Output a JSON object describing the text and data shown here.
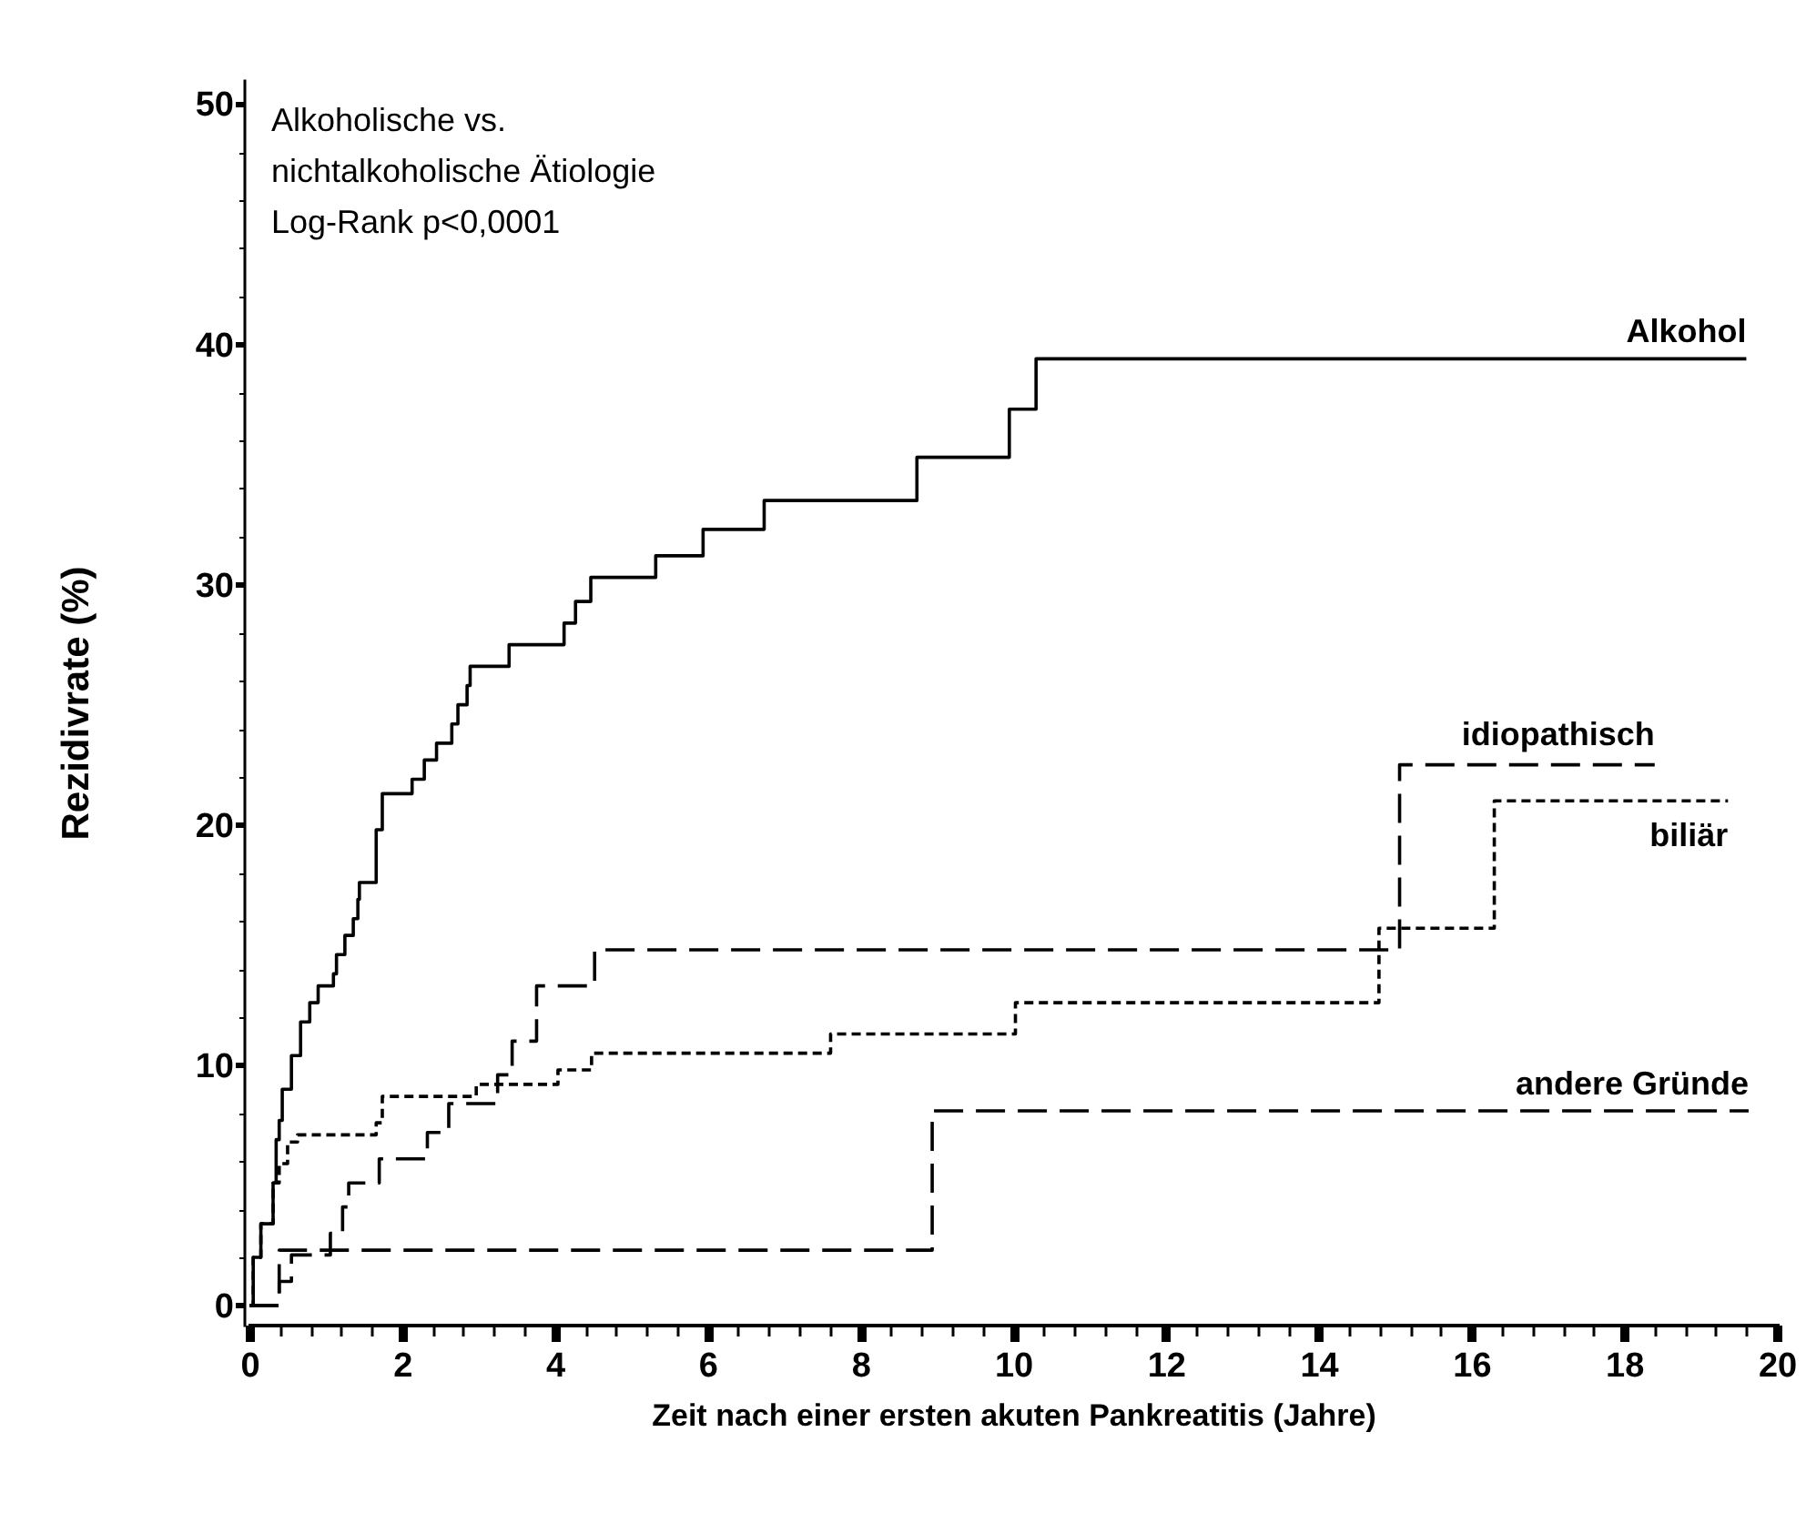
{
  "chart_data": {
    "type": "step",
    "xlabel": "Zeit nach einer ersten akuten Pankreatitis (Jahre)",
    "ylabel": "Rezidivrate (%)",
    "annotations": [
      "Alkoholische vs.",
      "nichtalkoholische Ätiologie",
      "Log-Rank p<0,0001"
    ],
    "xlim": [
      0,
      20
    ],
    "ylim": [
      -0.8,
      51
    ],
    "xticks": [
      0,
      {
        "value": 0.4,
        "label": null
      },
      {
        "value": 0.8,
        "label": null
      },
      {
        "value": 1.2,
        "label": null
      },
      {
        "value": 1.6,
        "label": null
      },
      2,
      {
        "value": 2.4,
        "label": null
      },
      {
        "value": 2.8,
        "label": null
      },
      {
        "value": 3.2,
        "label": null
      },
      {
        "value": 3.6,
        "label": null
      },
      4,
      {
        "value": 4.4,
        "label": null
      },
      {
        "value": 4.8,
        "label": null
      },
      {
        "value": 5.2,
        "label": null
      },
      {
        "value": 5.6,
        "label": null
      },
      6,
      {
        "value": 6.4,
        "label": null
      },
      {
        "value": 6.8,
        "label": null
      },
      {
        "value": 7.2,
        "label": null
      },
      {
        "value": 7.6,
        "label": null
      },
      8,
      {
        "value": 8.4,
        "label": null
      },
      {
        "value": 8.8,
        "label": null
      },
      {
        "value": 9.2,
        "label": null
      },
      {
        "value": 9.6,
        "label": null
      },
      10,
      {
        "value": 10.4,
        "label": null
      },
      {
        "value": 10.8,
        "label": null
      },
      {
        "value": 11.2,
        "label": null
      },
      {
        "value": 11.6,
        "label": null
      },
      12,
      {
        "value": 12.4,
        "label": null
      },
      {
        "value": 12.8,
        "label": null
      },
      {
        "value": 13.2,
        "label": null
      },
      {
        "value": 13.6,
        "label": null
      },
      14,
      {
        "value": 14.4,
        "label": null
      },
      {
        "value": 14.8,
        "label": null
      },
      {
        "value": 15.2,
        "label": null
      },
      {
        "value": 15.6,
        "label": null
      },
      16,
      {
        "value": 16.4,
        "label": null
      },
      {
        "value": 16.8,
        "label": null
      },
      {
        "value": 17.2,
        "label": null
      },
      {
        "value": 17.6,
        "label": null
      },
      18,
      {
        "value": 18.4,
        "label": null
      },
      {
        "value": 18.8,
        "label": null
      },
      {
        "value": 19.2,
        "label": null
      },
      {
        "value": 19.6,
        "label": null
      },
      20
    ],
    "yticks": [
      0,
      {
        "value": 2,
        "label": null
      },
      {
        "value": 4,
        "label": null
      },
      {
        "value": 6,
        "label": null
      },
      {
        "value": 8,
        "label": null
      },
      10,
      {
        "value": 12,
        "label": null
      },
      {
        "value": 14,
        "label": null
      },
      {
        "value": 16,
        "label": null
      },
      {
        "value": 18,
        "label": null
      },
      20,
      {
        "value": 22,
        "label": null
      },
      {
        "value": 24,
        "label": null
      },
      {
        "value": 26,
        "label": null
      },
      {
        "value": 28,
        "label": null
      },
      30,
      {
        "value": 32,
        "label": null
      },
      {
        "value": 34,
        "label": null
      },
      {
        "value": 36,
        "label": null
      },
      {
        "value": 38,
        "label": null
      },
      40,
      {
        "value": 42,
        "label": null
      },
      {
        "value": 44,
        "label": null
      },
      {
        "value": 46,
        "label": null
      },
      {
        "value": 48,
        "label": null
      },
      50
    ],
    "series": [
      {
        "name": "Alkohol",
        "color": "#000000",
        "line_style": "solid",
        "x": [
          0,
          0.05,
          0.15,
          0.31,
          0.35,
          0.39,
          0.43,
          0.55,
          0.67,
          0.79,
          0.9,
          1.1,
          1.14,
          1.25,
          1.36,
          1.42,
          1.44,
          1.66,
          1.74,
          2.13,
          2.29,
          2.45,
          2.65,
          2.73,
          2.85,
          2.89,
          3.4,
          4.12,
          4.27,
          4.47,
          5.32,
          5.94,
          6.74,
          8.74,
          9.95,
          10.3,
          19.6
        ],
        "values": [
          0,
          2,
          3.4,
          5.1,
          6.9,
          7.7,
          9,
          10.4,
          11.8,
          12.6,
          13.3,
          13.8,
          14.6,
          15.4,
          16.1,
          16.9,
          17.6,
          19.8,
          21.3,
          21.9,
          22.7,
          23.4,
          24.2,
          25,
          25.8,
          26.6,
          27.5,
          28.4,
          29.3,
          30.3,
          31.2,
          32.3,
          33.5,
          35.3,
          37.3,
          39.4,
          39.4
        ]
      },
      {
        "name": "idiopathisch",
        "color": "#000000",
        "line_style": "dashed",
        "x": [
          0,
          0.39,
          0.55,
          1.06,
          1.22,
          1.3,
          1.7,
          2.33,
          2.61,
          3.25,
          3.44,
          3.76,
          4.52,
          15.06,
          18.4
        ],
        "values": [
          0,
          1,
          2.1,
          3,
          4.1,
          5.1,
          6.1,
          7.2,
          8.4,
          9.6,
          11,
          13.3,
          14.8,
          22.5,
          22.5
        ]
      },
      {
        "name": "biliär",
        "color": "#000000",
        "line_style": "dotted",
        "x": [
          0,
          0.05,
          0.15,
          0.31,
          0.39,
          0.5,
          0.63,
          1.66,
          1.74,
          2.97,
          4.04,
          4.48,
          7.61,
          10.03,
          14.79,
          16.3,
          19.36
        ],
        "values": [
          0,
          2,
          3.4,
          5.1,
          5.9,
          6.8,
          7.1,
          7.6,
          8.7,
          9.2,
          9.8,
          10.5,
          11.3,
          12.6,
          15.7,
          21,
          21
        ]
      },
      {
        "name": "andere Gründe",
        "color": "#000000",
        "line_style": "dashed",
        "x": [
          0,
          0.39,
          8.94,
          19.63
        ],
        "values": [
          0,
          2.3,
          8.1,
          8.1
        ]
      }
    ]
  }
}
